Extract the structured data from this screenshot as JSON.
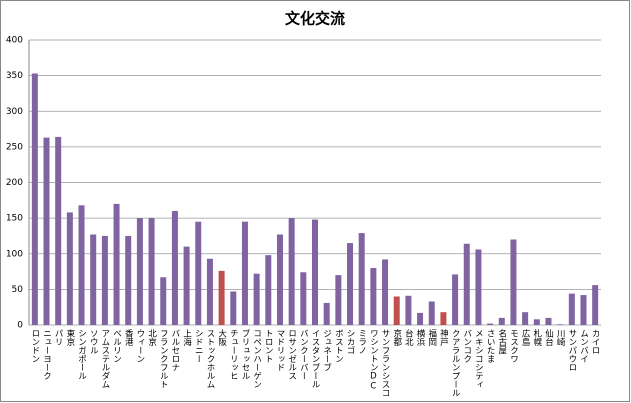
{
  "chart_data": {
    "type": "bar",
    "title": "文化交流",
    "categories": [
      "ロンドン",
      "ニューヨーク",
      "パリ",
      "東京",
      "シンガポール",
      "ソウル",
      "アムステルダム",
      "ベルリン",
      "香港",
      "ウィーン",
      "北京",
      "フランクフルト",
      "バルセロナ",
      "上海",
      "シドニー",
      "ストックホルム",
      "大阪",
      "チューリッヒ",
      "ブリュッセル",
      "コペンハーゲン",
      "トロント",
      "マドリッド",
      "ロサンゼルス",
      "バンクーバー",
      "イスタンブール",
      "ジュネーブ",
      "ボストン",
      "シカゴ",
      "ミラノ",
      "ワシントンDC",
      "サンフランシスコ",
      "京都",
      "台北",
      "横浜",
      "福岡",
      "神戸",
      "クアラルンプール",
      "バンコク",
      "メキシコシティ",
      "さいたま",
      "名古屋",
      "モスクワ",
      "広島",
      "札幌",
      "仙台",
      "川崎",
      "サンパウロ",
      "ムンバイ",
      "カイロ"
    ],
    "values": [
      353,
      263,
      264,
      158,
      168,
      127,
      125,
      170,
      125,
      150,
      150,
      67,
      160,
      110,
      145,
      93,
      76,
      47,
      145,
      72,
      98,
      127,
      150,
      74,
      148,
      31,
      70,
      115,
      129,
      80,
      92,
      40,
      41,
      17,
      33,
      18,
      71,
      114,
      106,
      2,
      10,
      120,
      18,
      8,
      10,
      1,
      44,
      42,
      56
    ],
    "colors": [
      "#8064a2",
      "#8064a2",
      "#8064a2",
      "#8064a2",
      "#8064a2",
      "#8064a2",
      "#8064a2",
      "#8064a2",
      "#8064a2",
      "#8064a2",
      "#8064a2",
      "#8064a2",
      "#8064a2",
      "#8064a2",
      "#8064a2",
      "#8064a2",
      "#c0504d",
      "#8064a2",
      "#8064a2",
      "#8064a2",
      "#8064a2",
      "#8064a2",
      "#8064a2",
      "#8064a2",
      "#8064a2",
      "#8064a2",
      "#8064a2",
      "#8064a2",
      "#8064a2",
      "#8064a2",
      "#8064a2",
      "#c0504d",
      "#8064a2",
      "#8064a2",
      "#8064a2",
      "#c0504d",
      "#8064a2",
      "#8064a2",
      "#8064a2",
      "#8064a2",
      "#8064a2",
      "#8064a2",
      "#8064a2",
      "#8064a2",
      "#8064a2",
      "#8064a2",
      "#8064a2",
      "#8064a2",
      "#8064a2"
    ],
    "ylim": [
      0,
      400
    ],
    "yticks": [
      0,
      50,
      100,
      150,
      200,
      250,
      300,
      350,
      400
    ],
    "grid": true
  }
}
